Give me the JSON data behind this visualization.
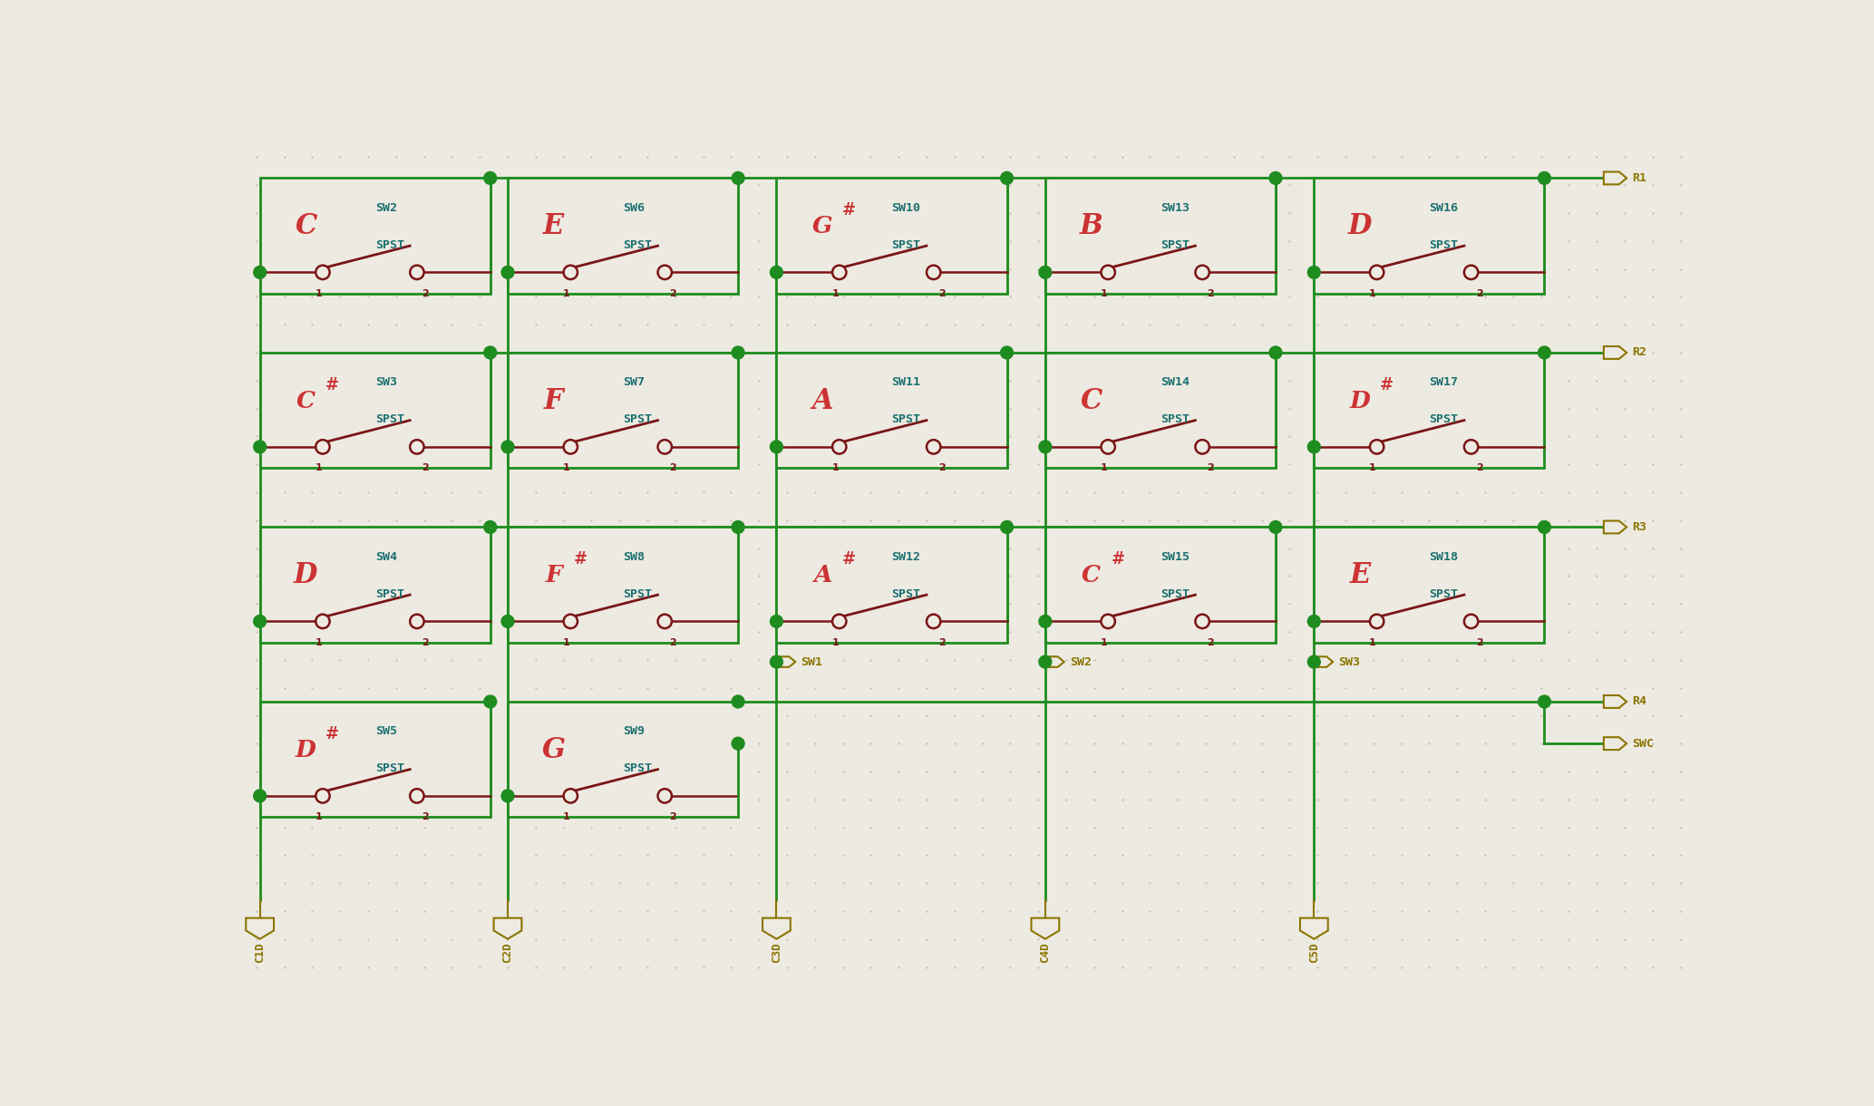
{
  "bg": "#edeae2",
  "green": "#1e8c1e",
  "teal": "#1a7070",
  "red": "#cc3333",
  "dark_red": "#7a1515",
  "gold": "#8B7500",
  "switches": [
    {
      "id": "SW2",
      "note": "C",
      "sharp": false,
      "col": 0,
      "row": 0
    },
    {
      "id": "SW6",
      "note": "E",
      "sharp": false,
      "col": 1,
      "row": 0
    },
    {
      "id": "SW10",
      "note": "G",
      "sharp": true,
      "col": 2,
      "row": 0
    },
    {
      "id": "SW13",
      "note": "B",
      "sharp": false,
      "col": 3,
      "row": 0
    },
    {
      "id": "SW16",
      "note": "D",
      "sharp": false,
      "col": 4,
      "row": 0
    },
    {
      "id": "SW3",
      "note": "C",
      "sharp": true,
      "col": 0,
      "row": 1
    },
    {
      "id": "SW7",
      "note": "F",
      "sharp": false,
      "col": 1,
      "row": 1
    },
    {
      "id": "SW11",
      "note": "A",
      "sharp": false,
      "col": 2,
      "row": 1
    },
    {
      "id": "SW14",
      "note": "C",
      "sharp": false,
      "col": 3,
      "row": 1
    },
    {
      "id": "SW17",
      "note": "D",
      "sharp": true,
      "col": 4,
      "row": 1
    },
    {
      "id": "SW4",
      "note": "D",
      "sharp": false,
      "col": 0,
      "row": 2
    },
    {
      "id": "SW8",
      "note": "F",
      "sharp": true,
      "col": 1,
      "row": 2
    },
    {
      "id": "SW12",
      "note": "A",
      "sharp": true,
      "col": 2,
      "row": 2
    },
    {
      "id": "SW15",
      "note": "C",
      "sharp": true,
      "col": 3,
      "row": 2
    },
    {
      "id": "SW18",
      "note": "E",
      "sharp": false,
      "col": 4,
      "row": 2
    },
    {
      "id": "SW5",
      "note": "D",
      "sharp": true,
      "col": 0,
      "row": 3
    },
    {
      "id": "SW9",
      "note": "G",
      "sharp": false,
      "col": 1,
      "row": 3
    }
  ],
  "col_labels": [
    "C1D",
    "C2D",
    "C3D",
    "C4D",
    "C5D"
  ],
  "row_labels": [
    "R1",
    "R2",
    "R3",
    "R4"
  ],
  "col_conn_labels": [
    "SW1",
    "SW2",
    "SW3"
  ],
  "swc_label": "SWC",
  "lw": 2.0,
  "dot_r": 0.09
}
